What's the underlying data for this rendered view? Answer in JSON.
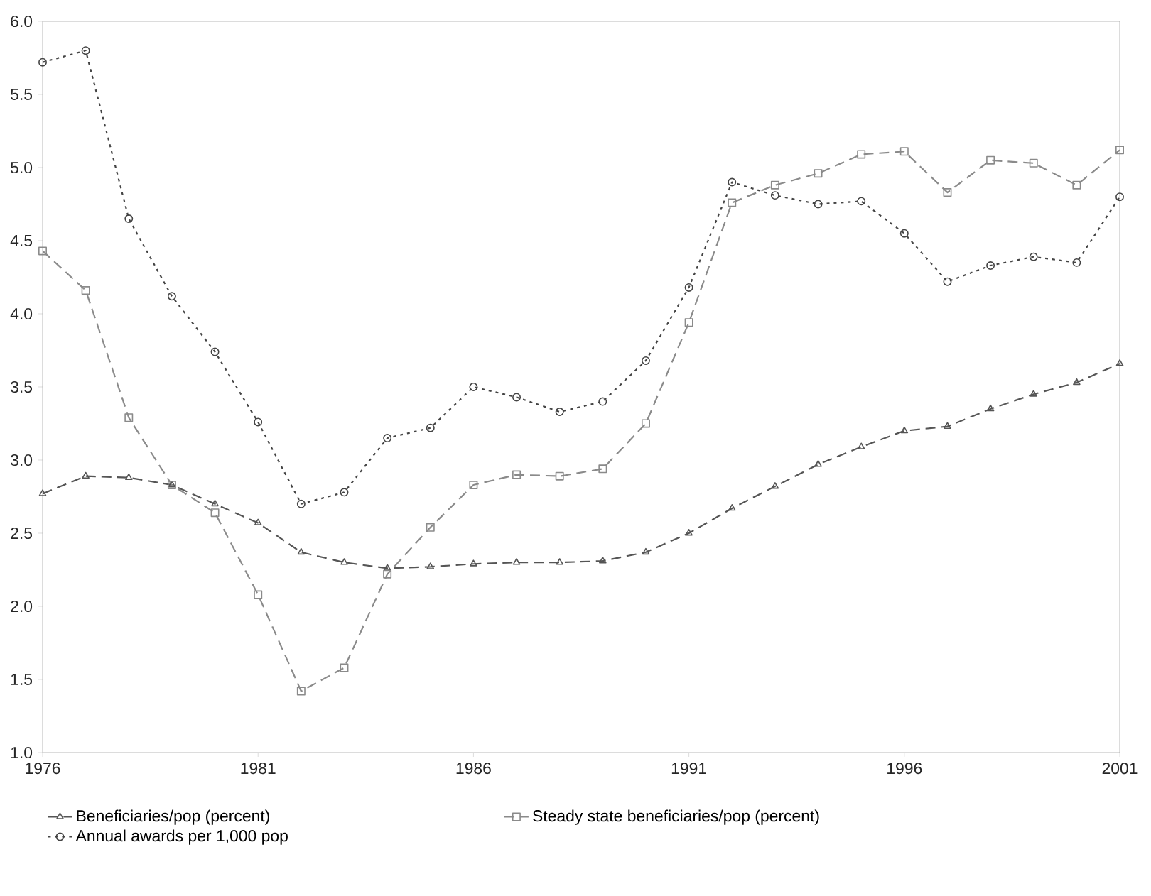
{
  "chart_data": {
    "type": "line",
    "x": [
      1976,
      1977,
      1978,
      1979,
      1980,
      1981,
      1982,
      1983,
      1984,
      1985,
      1986,
      1987,
      1988,
      1989,
      1990,
      1991,
      1992,
      1993,
      1994,
      1995,
      1996,
      1997,
      1998,
      1999,
      2000,
      2001
    ],
    "series": [
      {
        "name": "Beneficiaries/pop (percent)",
        "color": "#555555",
        "marker": "triangle",
        "line_style": "dashed",
        "values": [
          2.77,
          2.89,
          2.88,
          2.83,
          2.7,
          2.57,
          2.37,
          2.3,
          2.26,
          2.27,
          2.29,
          2.3,
          2.3,
          2.31,
          2.37,
          2.5,
          2.67,
          2.82,
          2.97,
          3.09,
          3.2,
          3.23,
          3.35,
          3.45,
          3.53,
          3.66
        ]
      },
      {
        "name": "Steady state beneficiaries/pop (percent)",
        "color": "#8a8a8a",
        "marker": "square",
        "line_style": "dashed",
        "values": [
          4.43,
          4.16,
          3.29,
          2.83,
          2.64,
          2.08,
          1.42,
          1.58,
          2.22,
          2.54,
          2.83,
          2.9,
          2.89,
          2.94,
          3.25,
          3.94,
          4.76,
          4.88,
          4.96,
          5.09,
          5.11,
          4.83,
          5.05,
          5.03,
          4.88,
          5.12
        ]
      },
      {
        "name": "Annual awards per 1,000 pop",
        "color": "#444444",
        "marker": "circle",
        "line_style": "dotted",
        "values": [
          5.72,
          5.8,
          4.65,
          4.12,
          3.74,
          3.26,
          2.7,
          2.78,
          3.15,
          3.22,
          3.5,
          3.43,
          3.33,
          3.4,
          3.68,
          4.18,
          4.9,
          4.81,
          4.75,
          4.77,
          4.55,
          4.22,
          4.33,
          4.39,
          4.35,
          4.8
        ]
      }
    ],
    "xlim": [
      1976,
      2001
    ],
    "xticks": [
      1976,
      1981,
      1986,
      1991,
      1996,
      2001
    ],
    "ylim": [
      1,
      6
    ],
    "yticks": [
      {
        "value": 1,
        "label": "1.0"
      },
      {
        "value": 1.5,
        "label": "1.5"
      },
      {
        "value": 2,
        "label": "2.0"
      },
      {
        "value": 2.5,
        "label": "2.5"
      },
      {
        "value": 3,
        "label": "3.0"
      },
      {
        "value": 3.5,
        "label": "3.5"
      },
      {
        "value": 4,
        "label": "4.0"
      },
      {
        "value": 4.5,
        "label": "4.5"
      },
      {
        "value": 5,
        "label": "5.0"
      },
      {
        "value": 5.5,
        "label": "5.5"
      },
      {
        "value": 6,
        "label": "6.0"
      }
    ],
    "grid": false,
    "legend": "bottom"
  }
}
